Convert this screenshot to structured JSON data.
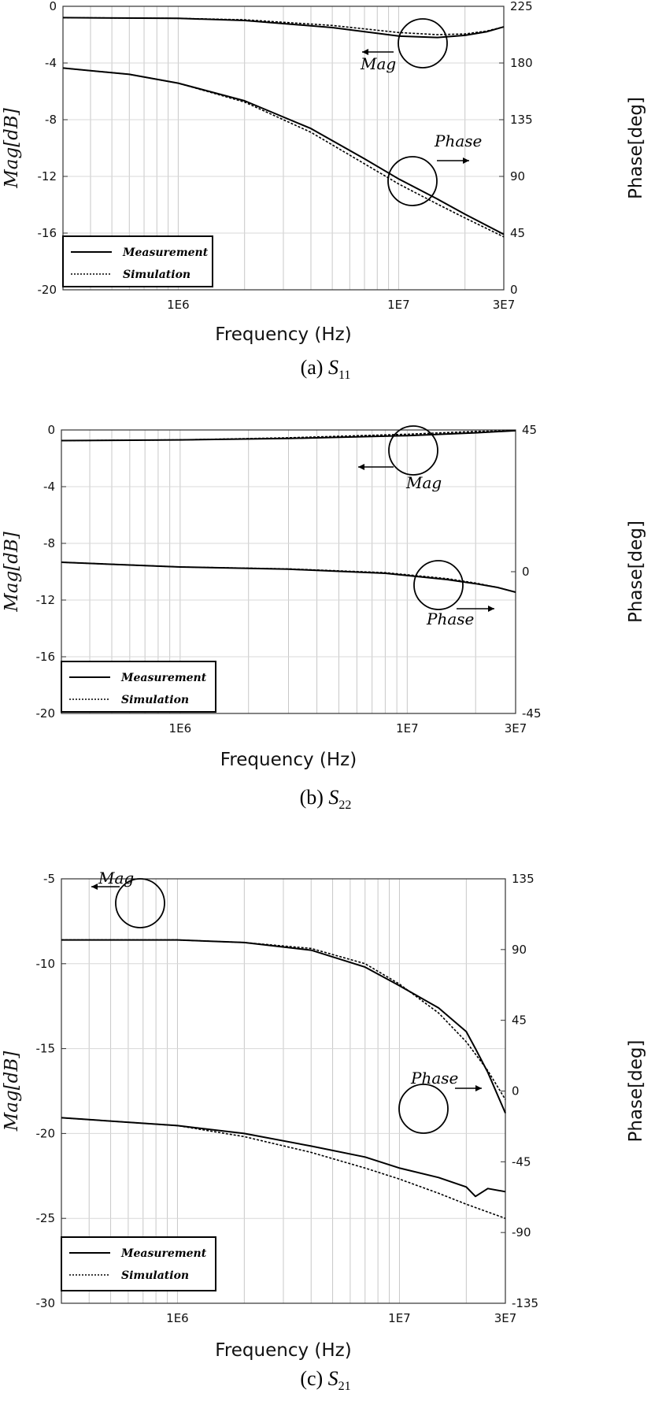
{
  "chart_data": [
    {
      "type": "line",
      "panel_label": "(a)",
      "panel_symbol": "S",
      "panel_subscript": "11",
      "xlabel": "Frequency (Hz)",
      "ylabel_left": "Mag[dB]",
      "ylabel_right": "Phase[deg]",
      "x_scale": "log",
      "xlim": [
        300000,
        30000000
      ],
      "ylim_left": [
        -20,
        0
      ],
      "ylim_right": [
        0,
        225
      ],
      "yticks_left": [
        0,
        -4,
        -8,
        -12,
        -16,
        -20
      ],
      "yticks_right": [
        225,
        180,
        135,
        90,
        45,
        0
      ],
      "xticks": [
        {
          "value": 1000000,
          "label": "1E6"
        },
        {
          "value": 10000000,
          "label": "1E7"
        },
        {
          "value": 30000000,
          "label": "3E7"
        }
      ],
      "grid": true,
      "legend": {
        "position": "bottom-left",
        "entries": [
          "Measurement",
          "Simulation"
        ]
      },
      "annotations": {
        "mag": "Mag",
        "phase": "Phase"
      },
      "series": [
        {
          "name": "Measurement",
          "axis": "left",
          "quantity": "Mag",
          "x": [
            300000,
            1000000,
            2000000,
            5000000,
            10000000,
            15000000,
            20000000,
            25000000,
            30000000
          ],
          "values": [
            -0.8,
            -0.85,
            -1.0,
            -1.5,
            -2.1,
            -2.2,
            -2.05,
            -1.8,
            -1.45
          ]
        },
        {
          "name": "Simulation",
          "axis": "left",
          "quantity": "Mag",
          "x": [
            300000,
            1000000,
            2000000,
            5000000,
            10000000,
            15000000,
            20000000,
            25000000,
            30000000
          ],
          "values": [
            -0.8,
            -0.85,
            -0.95,
            -1.35,
            -1.85,
            -2.0,
            -1.95,
            -1.75,
            -1.45
          ]
        },
        {
          "name": "Measurement",
          "axis": "right",
          "quantity": "Phase",
          "x": [
            300000,
            600000,
            1000000,
            2000000,
            4000000,
            7000000,
            10000000,
            15000000,
            20000000,
            30000000
          ],
          "values": [
            176,
            171,
            164,
            150,
            128,
            104,
            88,
            72,
            60,
            44
          ]
        },
        {
          "name": "Simulation",
          "axis": "right",
          "quantity": "Phase",
          "x": [
            300000,
            600000,
            1000000,
            2000000,
            4000000,
            7000000,
            10000000,
            15000000,
            20000000,
            30000000
          ],
          "values": [
            176,
            171,
            164,
            149,
            125,
            100,
            84,
            68,
            57,
            42
          ]
        }
      ]
    },
    {
      "type": "line",
      "panel_label": "(b)",
      "panel_symbol": "S",
      "panel_subscript": "22",
      "xlabel": "Frequency (Hz)",
      "ylabel_left": "Mag[dB]",
      "ylabel_right": "Phase[deg]",
      "x_scale": "log",
      "xlim": [
        300000,
        30000000
      ],
      "ylim_left": [
        -20,
        0
      ],
      "ylim_right": [
        -45,
        45
      ],
      "yticks_left": [
        0,
        -4,
        -8,
        -12,
        -16,
        -20
      ],
      "yticks_right": [
        45,
        0,
        -45
      ],
      "xticks": [
        {
          "value": 1000000,
          "label": "1E6"
        },
        {
          "value": 10000000,
          "label": "1E7"
        },
        {
          "value": 30000000,
          "label": "3E7"
        }
      ],
      "grid": true,
      "legend": {
        "position": "bottom-left",
        "entries": [
          "Measurement",
          "Simulation"
        ]
      },
      "annotations": {
        "mag": "Mag",
        "phase": "Phase"
      },
      "series": [
        {
          "name": "Measurement",
          "axis": "left",
          "quantity": "Mag",
          "x": [
            300000,
            1000000,
            3000000,
            10000000,
            20000000,
            30000000
          ],
          "values": [
            -0.75,
            -0.7,
            -0.6,
            -0.4,
            -0.2,
            -0.05
          ]
        },
        {
          "name": "Simulation",
          "axis": "left",
          "quantity": "Mag",
          "x": [
            300000,
            1000000,
            3000000,
            10000000,
            20000000,
            30000000
          ],
          "values": [
            -0.75,
            -0.7,
            -0.55,
            -0.3,
            -0.1,
            -0.05
          ]
        },
        {
          "name": "Measurement",
          "axis": "right",
          "quantity": "Phase",
          "x": [
            300000,
            1000000,
            3000000,
            8000000,
            15000000,
            20000000,
            25000000,
            30000000
          ],
          "values": [
            3,
            1.5,
            0.8,
            -0.5,
            -2.5,
            -3.8,
            -5.0,
            -6.5
          ]
        },
        {
          "name": "Simulation",
          "axis": "right",
          "quantity": "Phase",
          "x": [
            300000,
            1000000,
            3000000,
            8000000,
            15000000,
            20000000,
            25000000,
            30000000
          ],
          "values": [
            3,
            1.5,
            0.9,
            -0.3,
            -2.2,
            -3.6,
            -5.0,
            -6.5
          ]
        }
      ]
    },
    {
      "type": "line",
      "panel_label": "(c)",
      "panel_symbol": "S",
      "panel_subscript": "21",
      "xlabel": "Frequency (Hz)",
      "ylabel_left": "Mag[dB]",
      "ylabel_right": "Phase[deg]",
      "x_scale": "log",
      "xlim": [
        300000,
        30000000
      ],
      "ylim_left": [
        -30,
        -5
      ],
      "ylim_right": [
        -135,
        135
      ],
      "yticks_left": [
        -5,
        -10,
        -15,
        -20,
        -25,
        -30
      ],
      "yticks_right": [
        135,
        90,
        45,
        0,
        -45,
        -90,
        -135
      ],
      "xticks": [
        {
          "value": 1000000,
          "label": "1E6"
        },
        {
          "value": 10000000,
          "label": "1E7"
        },
        {
          "value": 30000000,
          "label": "3E7"
        }
      ],
      "grid": true,
      "legend": {
        "position": "bottom-left",
        "entries": [
          "Measurement",
          "Simulation"
        ]
      },
      "annotations": {
        "mag": "Mag",
        "phase": "Phase"
      },
      "series": [
        {
          "name": "Measurement",
          "axis": "left",
          "quantity": "Mag",
          "x": [
            300000,
            1000000,
            2000000,
            4000000,
            7000000,
            10000000,
            15000000,
            20000000,
            22000000,
            25000000,
            30000000
          ],
          "values": [
            -8.6,
            -8.6,
            -8.75,
            -9.2,
            -10.2,
            -11.3,
            -12.6,
            -14.0,
            -15.0,
            -16.4,
            -18.8
          ]
        },
        {
          "name": "Simulation",
          "axis": "left",
          "quantity": "Mag",
          "x": [
            300000,
            1000000,
            2000000,
            4000000,
            7000000,
            10000000,
            15000000,
            20000000,
            25000000,
            30000000
          ],
          "values": [
            -8.6,
            -8.6,
            -8.75,
            -9.1,
            -10.0,
            -11.2,
            -12.9,
            -14.6,
            -16.3,
            -18.0
          ]
        },
        {
          "name": "Measurement",
          "axis": "right",
          "quantity": "Phase",
          "x": [
            300000,
            1000000,
            2000000,
            4000000,
            7000000,
            10000000,
            15000000,
            20000000,
            22000000,
            25000000,
            30000000
          ],
          "values": [
            -17,
            -22,
            -27,
            -35,
            -42,
            -49,
            -55,
            -61,
            -67,
            -62,
            -64
          ]
        },
        {
          "name": "Simulation",
          "axis": "right",
          "quantity": "Phase",
          "x": [
            300000,
            1000000,
            2000000,
            4000000,
            7000000,
            10000000,
            15000000,
            20000000,
            30000000
          ],
          "values": [
            -17,
            -22,
            -29,
            -39,
            -49,
            -56,
            -65,
            -72,
            -81
          ]
        }
      ]
    }
  ]
}
